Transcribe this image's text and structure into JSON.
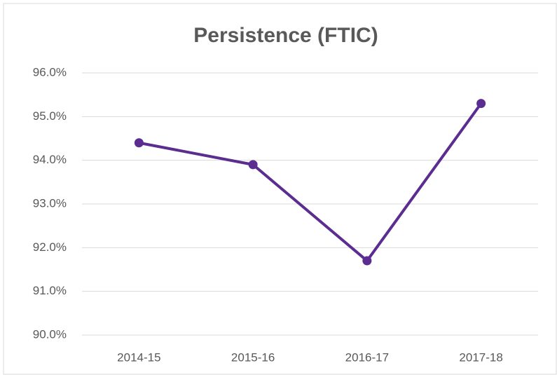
{
  "chart_data": {
    "type": "line",
    "title": "Persistence (FTIC)",
    "categories": [
      "2014-15",
      "2015-16",
      "2016-17",
      "2017-18"
    ],
    "series": [
      {
        "name": "Persistence",
        "color": "#5c2d91",
        "values": [
          94.4,
          93.9,
          91.7,
          95.3
        ]
      }
    ],
    "ylim": [
      90,
      96
    ],
    "yticks": [
      {
        "value": 90,
        "label": "90.0%"
      },
      {
        "value": 91,
        "label": "91.0%"
      },
      {
        "value": 92,
        "label": "92.0%"
      },
      {
        "value": 93,
        "label": "93.0%"
      },
      {
        "value": 94,
        "label": "94.0%"
      },
      {
        "value": 95,
        "label": "95.0%"
      },
      {
        "value": 96,
        "label": "96.0%"
      }
    ],
    "grid": true,
    "legend": false
  }
}
